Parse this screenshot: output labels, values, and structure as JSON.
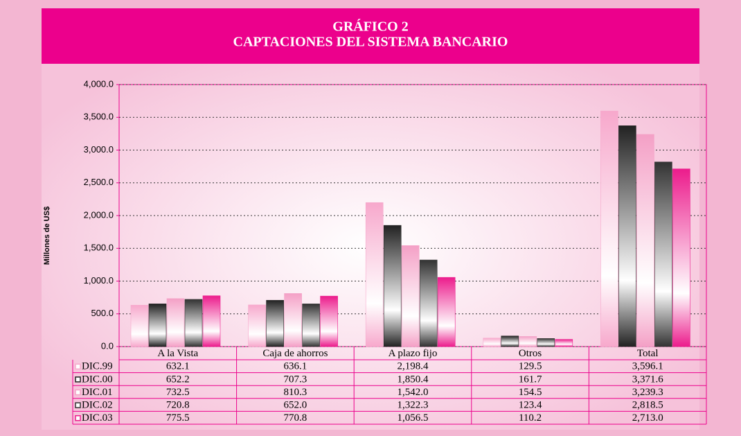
{
  "chart_data": {
    "type": "bar",
    "title": "GRÁFICO 2",
    "subtitle": "CAPTACIONES DEL SISTEMA BANCARIO",
    "y_label": "Millones de US$",
    "categories": [
      "A la Vista",
      "Caja de ahorros",
      "A plazo fijo",
      "Otros",
      "Total"
    ],
    "series": [
      {
        "name": "DIC.99",
        "color": "#f7a8cc",
        "values": [
          632.1,
          636.1,
          2198.4,
          129.5,
          3596.1
        ],
        "value_labels": [
          "632.1",
          "636.1",
          "2,198.4",
          "129.5",
          "3,596.1"
        ]
      },
      {
        "name": "DIC.00",
        "color": "#222222",
        "values": [
          652.2,
          707.3,
          1850.4,
          161.7,
          3371.6
        ],
        "value_labels": [
          "652.2",
          "707.3",
          "1,850.4",
          "161.7",
          "3,371.6"
        ]
      },
      {
        "name": "DIC.01",
        "color": "#f4a0c6",
        "values": [
          732.5,
          810.3,
          1542.0,
          154.5,
          3239.3
        ],
        "value_labels": [
          "732.5",
          "810.3",
          "1,542.0",
          "154.5",
          "3,239.3"
        ]
      },
      {
        "name": "DIC.02",
        "color": "#333333",
        "values": [
          720.8,
          652.0,
          1322.3,
          123.4,
          2818.5
        ],
        "value_labels": [
          "720.8",
          "652.0",
          "1,322.3",
          "123.4",
          "2,818.5"
        ]
      },
      {
        "name": "DIC.03",
        "color": "#ec1c8c",
        "values": [
          775.5,
          770.8,
          1056.5,
          110.2,
          2713.0
        ],
        "value_labels": [
          "775.5",
          "770.8",
          "1,056.5",
          "110.2",
          "2,713.0"
        ]
      }
    ],
    "ylim": [
      0,
      4000
    ],
    "yticks": [
      {
        "value": 0,
        "label": "0.0"
      },
      {
        "value": 500,
        "label": "500.0"
      },
      {
        "value": 1000,
        "label": "1,000.0"
      },
      {
        "value": 1500,
        "label": "1,500.0"
      },
      {
        "value": 2000,
        "label": "2,000.0"
      },
      {
        "value": 2500,
        "label": "2,500.0"
      },
      {
        "value": 3000,
        "label": "3,000.0"
      },
      {
        "value": 3500,
        "label": "3,500.0"
      },
      {
        "value": 4000,
        "label": "4,000.0"
      }
    ],
    "grid": true
  }
}
